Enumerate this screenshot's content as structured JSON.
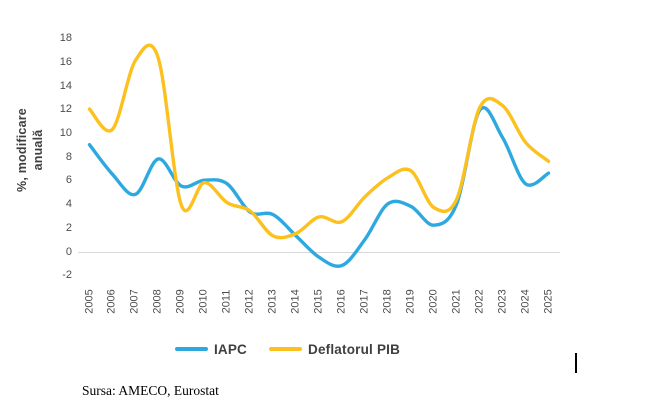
{
  "chart_data": {
    "type": "line",
    "categories": [
      "2005",
      "2006",
      "2007",
      "2008",
      "2009",
      "2010",
      "2011",
      "2012",
      "2013",
      "2014",
      "2015",
      "2016",
      "2017",
      "2018",
      "2019",
      "2020",
      "2021",
      "2022",
      "2023",
      "2024",
      "2025"
    ],
    "series": [
      {
        "name": "IAPC",
        "color": "#2EA9DF",
        "values": [
          9.1,
          6.6,
          4.9,
          7.9,
          5.6,
          6.1,
          5.8,
          3.4,
          3.2,
          1.4,
          -0.4,
          -1.1,
          1.1,
          4.1,
          3.9,
          2.3,
          4.1,
          12.0,
          9.7,
          5.8,
          6.7
        ]
      },
      {
        "name": "Deflatorul PIB",
        "color": "#FCC11E",
        "values": [
          12.1,
          10.4,
          16.2,
          16.4,
          4.0,
          5.9,
          4.2,
          3.5,
          1.4,
          1.6,
          3.0,
          2.6,
          4.7,
          6.3,
          6.9,
          3.8,
          4.5,
          12.2,
          12.4,
          9.3,
          7.7
        ]
      }
    ],
    "title": "",
    "xlabel": "",
    "ylabel_line1": "%, modificare",
    "ylabel_line2": "anuală",
    "yticks": [
      18,
      16,
      14,
      12,
      10,
      8,
      6,
      4,
      2,
      0,
      -2
    ],
    "ylim": [
      -2,
      18
    ],
    "grid": "zero-line-only",
    "gridline_color": "#D9D9D9",
    "legend_position": "bottom",
    "line_smoothing": true
  },
  "source": {
    "text": "Sursa: AMECO, Eurostat"
  }
}
